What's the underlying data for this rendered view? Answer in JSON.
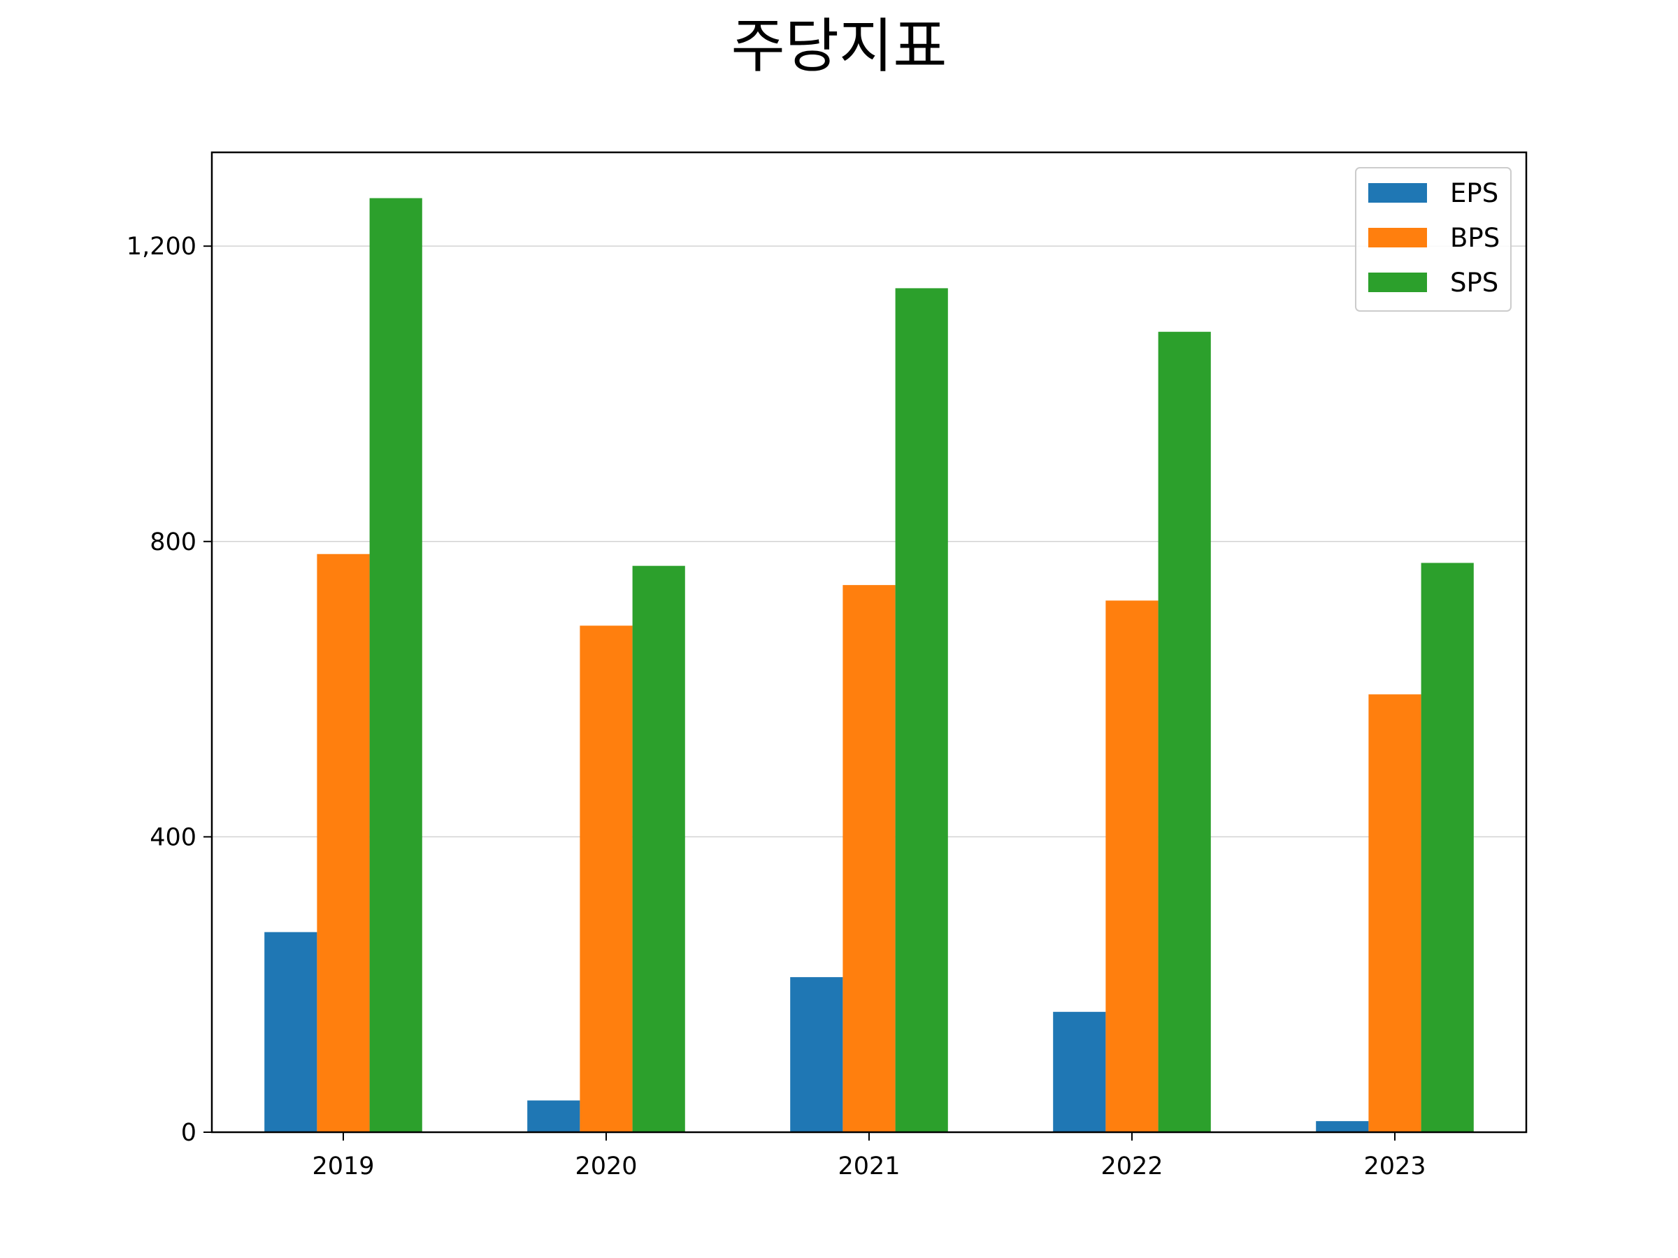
{
  "chart_data": {
    "type": "bar",
    "title": "주당지표",
    "xlabel": "",
    "ylabel": "",
    "categories": [
      "2019",
      "2020",
      "2021",
      "2022",
      "2023"
    ],
    "series": [
      {
        "name": "EPS",
        "color": "#1f77b4",
        "values": [
          271,
          43,
          210,
          163,
          15
        ]
      },
      {
        "name": "BPS",
        "color": "#ff7f0e",
        "values": [
          783,
          686,
          741,
          720,
          593
        ]
      },
      {
        "name": "SPS",
        "color": "#2ca02c",
        "values": [
          1265,
          767,
          1143,
          1084,
          771
        ]
      }
    ],
    "ylim": [
      0,
      1327
    ],
    "yticks": [
      0,
      400,
      800,
      1200
    ],
    "ytick_labels": [
      "0",
      "400",
      "800",
      "1,200"
    ],
    "grid": "horizontal",
    "legend": "top-right"
  }
}
